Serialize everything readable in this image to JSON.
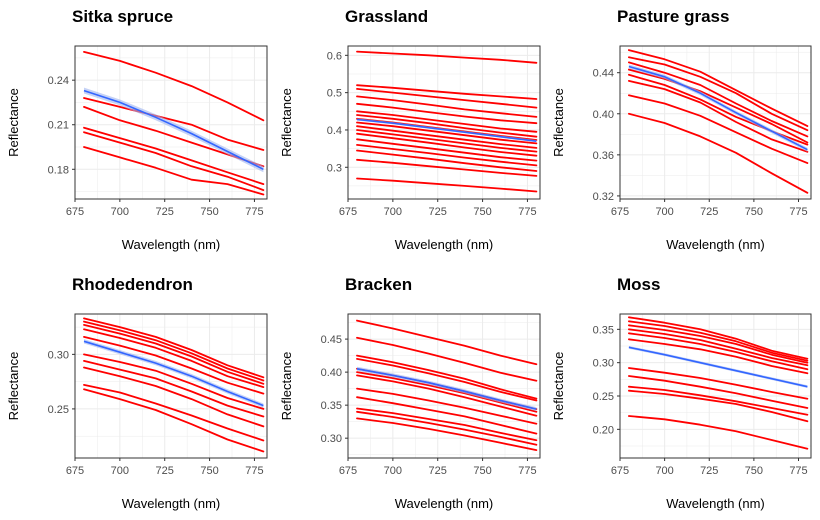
{
  "figure": {
    "background": "#ffffff",
    "panel_border_color": "#333333",
    "grid_color": "#ebebeb",
    "sample_line_color": "#ff0000",
    "mean_line_color": "#3366ff",
    "ribbon_color": "#9fb4f0"
  },
  "chart_data": [
    {
      "type": "line",
      "title": "Sitka spruce",
      "xlabel": "Wavelength (nm)",
      "ylabel": "Reflectance",
      "xlim": [
        675,
        782
      ],
      "ylim": [
        0.16,
        0.263
      ],
      "xticks": [
        675,
        700,
        725,
        750,
        775
      ],
      "yticks": [
        0.18,
        0.21,
        0.24
      ],
      "ytick_labels": [
        "0.18",
        "0.21",
        "0.24"
      ],
      "grid": true,
      "legend": "none",
      "x": [
        680,
        700,
        720,
        740,
        760,
        780
      ],
      "series": [
        {
          "values": [
            0.259,
            0.253,
            0.245,
            0.236,
            0.225,
            0.213
          ]
        },
        {
          "values": [
            0.228,
            0.222,
            0.216,
            0.21,
            0.2,
            0.193
          ]
        },
        {
          "values": [
            0.222,
            0.213,
            0.206,
            0.198,
            0.19,
            0.182
          ]
        },
        {
          "values": [
            0.208,
            0.201,
            0.194,
            0.186,
            0.178,
            0.17
          ]
        },
        {
          "values": [
            0.205,
            0.198,
            0.191,
            0.182,
            0.175,
            0.166
          ]
        },
        {
          "values": [
            0.195,
            0.188,
            0.181,
            0.173,
            0.17,
            0.163
          ]
        }
      ],
      "mean": {
        "values": [
          0.233,
          0.225,
          0.215,
          0.204,
          0.192,
          0.18
        ],
        "band": 0.002
      }
    },
    {
      "type": "line",
      "title": "Grassland",
      "xlabel": "Wavelength (nm)",
      "ylabel": "Reflectance",
      "xlim": [
        675,
        782
      ],
      "ylim": [
        0.215,
        0.625
      ],
      "xticks": [
        675,
        700,
        725,
        750,
        775
      ],
      "yticks": [
        0.3,
        0.4,
        0.5,
        0.6
      ],
      "ytick_labels": [
        "0.3",
        "0.4",
        "0.5",
        "0.6"
      ],
      "grid": true,
      "legend": "none",
      "x": [
        680,
        700,
        720,
        740,
        760,
        780
      ],
      "series": [
        {
          "values": [
            0.61,
            0.605,
            0.6,
            0.594,
            0.588,
            0.58
          ]
        },
        {
          "values": [
            0.52,
            0.513,
            0.505,
            0.497,
            0.49,
            0.483
          ]
        },
        {
          "values": [
            0.51,
            0.5,
            0.49,
            0.48,
            0.47,
            0.46
          ]
        },
        {
          "values": [
            0.49,
            0.48,
            0.468,
            0.455,
            0.445,
            0.435
          ]
        },
        {
          "values": [
            0.47,
            0.46,
            0.448,
            0.436,
            0.426,
            0.418
          ]
        },
        {
          "values": [
            0.45,
            0.44,
            0.428,
            0.416,
            0.404,
            0.395
          ]
        },
        {
          "values": [
            0.44,
            0.43,
            0.418,
            0.405,
            0.393,
            0.382
          ]
        },
        {
          "values": [
            0.43,
            0.42,
            0.408,
            0.396,
            0.384,
            0.373
          ]
        },
        {
          "values": [
            0.42,
            0.41,
            0.398,
            0.386,
            0.374,
            0.364
          ]
        },
        {
          "values": [
            0.41,
            0.398,
            0.386,
            0.374,
            0.362,
            0.352
          ]
        },
        {
          "values": [
            0.4,
            0.388,
            0.376,
            0.364,
            0.352,
            0.342
          ]
        },
        {
          "values": [
            0.39,
            0.378,
            0.366,
            0.353,
            0.341,
            0.331
          ]
        },
        {
          "values": [
            0.375,
            0.363,
            0.351,
            0.339,
            0.327,
            0.318
          ]
        },
        {
          "values": [
            0.36,
            0.349,
            0.338,
            0.326,
            0.315,
            0.305
          ]
        },
        {
          "values": [
            0.345,
            0.334,
            0.323,
            0.311,
            0.3,
            0.29
          ]
        },
        {
          "values": [
            0.32,
            0.312,
            0.303,
            0.294,
            0.285,
            0.277
          ]
        },
        {
          "values": [
            0.27,
            0.264,
            0.257,
            0.25,
            0.243,
            0.235
          ]
        }
      ],
      "mean": {
        "values": [
          0.428,
          0.418,
          0.406,
          0.394,
          0.382,
          0.37
        ],
        "band": 0.003
      }
    },
    {
      "type": "line",
      "title": "Pasture grass",
      "xlabel": "Wavelength (nm)",
      "ylabel": "Reflectance",
      "xlim": [
        675,
        782
      ],
      "ylim": [
        0.317,
        0.466
      ],
      "xticks": [
        675,
        700,
        725,
        750,
        775
      ],
      "yticks": [
        0.32,
        0.36,
        0.4,
        0.44
      ],
      "ytick_labels": [
        "0.32",
        "0.36",
        "0.40",
        "0.44"
      ],
      "grid": true,
      "legend": "none",
      "x": [
        680,
        700,
        720,
        740,
        760,
        780
      ],
      "series": [
        {
          "values": [
            0.462,
            0.453,
            0.441,
            0.423,
            0.405,
            0.388
          ]
        },
        {
          "values": [
            0.455,
            0.448,
            0.436,
            0.42,
            0.4,
            0.384
          ]
        },
        {
          "values": [
            0.45,
            0.44,
            0.428,
            0.41,
            0.393,
            0.378
          ]
        },
        {
          "values": [
            0.443,
            0.434,
            0.422,
            0.406,
            0.39,
            0.372
          ]
        },
        {
          "values": [
            0.438,
            0.428,
            0.414,
            0.397,
            0.383,
            0.37
          ]
        },
        {
          "values": [
            0.432,
            0.424,
            0.411,
            0.392,
            0.375,
            0.363
          ]
        },
        {
          "values": [
            0.418,
            0.41,
            0.398,
            0.382,
            0.366,
            0.352
          ]
        },
        {
          "values": [
            0.4,
            0.391,
            0.378,
            0.362,
            0.342,
            0.323
          ]
        }
      ],
      "mean": {
        "values": [
          0.446,
          0.436,
          0.42,
          0.401,
          0.383,
          0.365
        ],
        "band": 0.002
      }
    },
    {
      "type": "line",
      "title": "Rhodedendron",
      "xlabel": "Wavelength (nm)",
      "ylabel": "Reflectance",
      "xlim": [
        675,
        782
      ],
      "ylim": [
        0.205,
        0.337
      ],
      "xticks": [
        675,
        700,
        725,
        750,
        775
      ],
      "yticks": [
        0.25,
        0.3
      ],
      "ytick_labels": [
        "0.25",
        "0.30"
      ],
      "grid": true,
      "legend": "none",
      "x": [
        680,
        700,
        720,
        740,
        760,
        780
      ],
      "series": [
        {
          "values": [
            0.333,
            0.325,
            0.316,
            0.304,
            0.29,
            0.279
          ]
        },
        {
          "values": [
            0.33,
            0.322,
            0.313,
            0.301,
            0.287,
            0.276
          ]
        },
        {
          "values": [
            0.327,
            0.319,
            0.31,
            0.298,
            0.284,
            0.273
          ]
        },
        {
          "values": [
            0.323,
            0.315,
            0.306,
            0.294,
            0.28,
            0.27
          ]
        },
        {
          "values": [
            0.316,
            0.308,
            0.299,
            0.287,
            0.274,
            0.264
          ]
        },
        {
          "values": [
            0.3,
            0.293,
            0.285,
            0.273,
            0.26,
            0.25
          ]
        },
        {
          "values": [
            0.294,
            0.286,
            0.278,
            0.266,
            0.253,
            0.243
          ]
        },
        {
          "values": [
            0.288,
            0.28,
            0.271,
            0.259,
            0.245,
            0.234
          ]
        },
        {
          "values": [
            0.272,
            0.265,
            0.255,
            0.244,
            0.232,
            0.221
          ]
        },
        {
          "values": [
            0.268,
            0.259,
            0.249,
            0.236,
            0.222,
            0.211
          ]
        }
      ],
      "mean": {
        "values": [
          0.312,
          0.302,
          0.292,
          0.28,
          0.266,
          0.253
        ],
        "band": 0.002
      }
    },
    {
      "type": "line",
      "title": "Bracken",
      "xlabel": "Wavelength (nm)",
      "ylabel": "Reflectance",
      "xlim": [
        675,
        782
      ],
      "ylim": [
        0.27,
        0.488
      ],
      "xticks": [
        675,
        700,
        725,
        750,
        775
      ],
      "yticks": [
        0.3,
        0.35,
        0.4,
        0.45
      ],
      "ytick_labels": [
        "0.30",
        "0.35",
        "0.40",
        "0.45"
      ],
      "grid": true,
      "legend": "none",
      "x": [
        680,
        700,
        720,
        740,
        760,
        780
      ],
      "series": [
        {
          "values": [
            0.478,
            0.466,
            0.453,
            0.44,
            0.425,
            0.412
          ]
        },
        {
          "values": [
            0.452,
            0.441,
            0.428,
            0.414,
            0.399,
            0.387
          ]
        },
        {
          "values": [
            0.425,
            0.415,
            0.403,
            0.39,
            0.374,
            0.36
          ]
        },
        {
          "values": [
            0.42,
            0.41,
            0.398,
            0.385,
            0.37,
            0.357
          ]
        },
        {
          "values": [
            0.405,
            0.395,
            0.384,
            0.371,
            0.357,
            0.344
          ]
        },
        {
          "values": [
            0.4,
            0.391,
            0.38,
            0.368,
            0.354,
            0.34
          ]
        },
        {
          "values": [
            0.395,
            0.386,
            0.375,
            0.362,
            0.348,
            0.334
          ]
        },
        {
          "values": [
            0.375,
            0.367,
            0.357,
            0.346,
            0.334,
            0.322
          ]
        },
        {
          "values": [
            0.362,
            0.353,
            0.343,
            0.333,
            0.32,
            0.307
          ]
        },
        {
          "values": [
            0.345,
            0.338,
            0.329,
            0.32,
            0.308,
            0.297
          ]
        },
        {
          "values": [
            0.34,
            0.332,
            0.323,
            0.313,
            0.302,
            0.29
          ]
        },
        {
          "values": [
            0.33,
            0.323,
            0.314,
            0.304,
            0.293,
            0.282
          ]
        }
      ],
      "mean": {
        "values": [
          0.405,
          0.395,
          0.384,
          0.371,
          0.357,
          0.344
        ],
        "band": 0.003
      }
    },
    {
      "type": "line",
      "title": "Moss",
      "xlabel": "Wavelength (nm)",
      "ylabel": "Reflectance",
      "xlim": [
        675,
        782
      ],
      "ylim": [
        0.157,
        0.373
      ],
      "xticks": [
        675,
        700,
        725,
        750,
        775
      ],
      "yticks": [
        0.2,
        0.25,
        0.3,
        0.35
      ],
      "ytick_labels": [
        "0.20",
        "0.25",
        "0.30",
        "0.35"
      ],
      "grid": true,
      "legend": "none",
      "x": [
        680,
        700,
        720,
        740,
        760,
        780
      ],
      "series": [
        {
          "values": [
            0.368,
            0.36,
            0.35,
            0.336,
            0.318,
            0.306
          ]
        },
        {
          "values": [
            0.362,
            0.355,
            0.345,
            0.332,
            0.315,
            0.303
          ]
        },
        {
          "values": [
            0.356,
            0.349,
            0.34,
            0.328,
            0.312,
            0.3
          ]
        },
        {
          "values": [
            0.35,
            0.343,
            0.334,
            0.321,
            0.307,
            0.296
          ]
        },
        {
          "values": [
            0.344,
            0.337,
            0.328,
            0.316,
            0.302,
            0.29
          ]
        },
        {
          "values": [
            0.335,
            0.328,
            0.32,
            0.309,
            0.295,
            0.284
          ]
        },
        {
          "values": [
            0.292,
            0.285,
            0.277,
            0.267,
            0.256,
            0.246
          ]
        },
        {
          "values": [
            0.28,
            0.273,
            0.264,
            0.254,
            0.243,
            0.232
          ]
        },
        {
          "values": [
            0.264,
            0.259,
            0.251,
            0.242,
            0.232,
            0.222
          ]
        },
        {
          "values": [
            0.258,
            0.253,
            0.246,
            0.238,
            0.226,
            0.212
          ]
        },
        {
          "values": [
            0.22,
            0.215,
            0.207,
            0.197,
            0.184,
            0.171
          ]
        }
      ],
      "mean": {
        "values": [
          0.323,
          0.312,
          0.3,
          0.288,
          0.276,
          0.264
        ],
        "band": 0.002
      }
    }
  ]
}
